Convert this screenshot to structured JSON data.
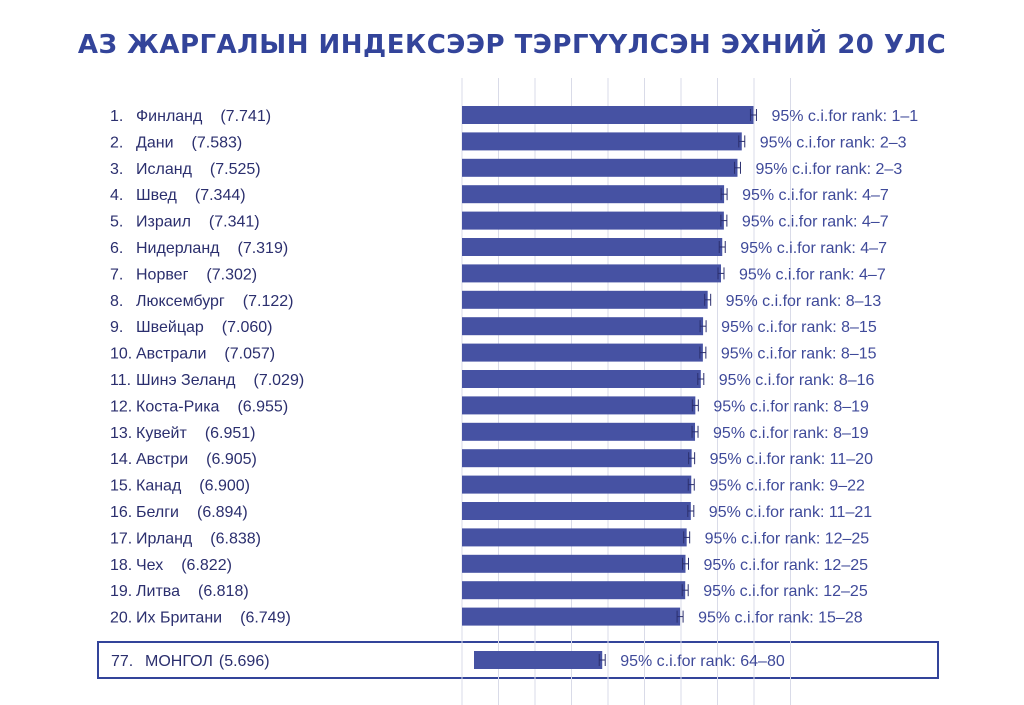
{
  "chart_data": {
    "type": "bar",
    "orientation": "horizontal",
    "title": "АЗ ЖАРГАЛЫН ИНДЕКСЭЭР ТЭРГҮҮЛСЭН ЭХНИЙ 20 УЛС",
    "xlim": [
      3.8,
      8.1
    ],
    "grid": true,
    "bar_color": "#4652a3",
    "entries": [
      {
        "rank": "1.",
        "country": "Финланд",
        "score_label": "(7.741)",
        "value": 7.741,
        "ci": "95% c.i.for rank: 1–1"
      },
      {
        "rank": "2.",
        "country": "Дани",
        "score_label": "(7.583)",
        "value": 7.583,
        "ci": "95% c.i.for rank: 2–3"
      },
      {
        "rank": "3.",
        "country": "Исланд",
        "score_label": "(7.525)",
        "value": 7.525,
        "ci": "95% c.i.for rank: 2–3"
      },
      {
        "rank": "4.",
        "country": "Швед",
        "score_label": "(7.344)",
        "value": 7.344,
        "ci": "95% c.i.for rank: 4–7"
      },
      {
        "rank": "5.",
        "country": "Израил",
        "score_label": "(7.341)",
        "value": 7.341,
        "ci": "95% c.i.for rank: 4–7"
      },
      {
        "rank": "6.",
        "country": "Нидерланд",
        "score_label": "(7.319)",
        "value": 7.319,
        "ci": "95% c.i.for rank: 4–7"
      },
      {
        "rank": "7.",
        "country": "Норвег",
        "score_label": "(7.302)",
        "value": 7.302,
        "ci": "95% c.i.for rank: 4–7"
      },
      {
        "rank": "8.",
        "country": "Люксембург",
        "score_label": "(7.122)",
        "value": 7.122,
        "ci": "95% c.i.for rank: 8–13"
      },
      {
        "rank": "9.",
        "country": "Швейцар",
        "score_label": "(7.060)",
        "value": 7.06,
        "ci": "95% c.i.for rank: 8–15"
      },
      {
        "rank": "10.",
        "country": "Австрали",
        "score_label": "(7.057)",
        "value": 7.057,
        "ci": "95% c.i.for rank: 8–15"
      },
      {
        "rank": "11.",
        "country": "Шинэ Зеланд",
        "score_label": "(7.029)",
        "value": 7.029,
        "ci": "95% c.i.for rank: 8–16"
      },
      {
        "rank": "12.",
        "country": "Коста-Рика",
        "score_label": "(6.955)",
        "value": 6.955,
        "ci": "95% c.i.for rank: 8–19"
      },
      {
        "rank": "13.",
        "country": "Кувейт",
        "score_label": "(6.951)",
        "value": 6.951,
        "ci": "95% c.i.for rank: 8–19"
      },
      {
        "rank": "14.",
        "country": "Австри",
        "score_label": "(6.905)",
        "value": 6.905,
        "ci": "95% c.i.for rank: 11–20"
      },
      {
        "rank": "15.",
        "country": "Канад",
        "score_label": "(6.900)",
        "value": 6.9,
        "ci": "95% c.i.for rank: 9–22"
      },
      {
        "rank": "16.",
        "country": "Белги",
        "score_label": "(6.894)",
        "value": 6.894,
        "ci": "95% c.i.for rank: 11–21"
      },
      {
        "rank": "17.",
        "country": "Ирланд",
        "score_label": "(6.838)",
        "value": 6.838,
        "ci": "95% c.i.for rank: 12–25"
      },
      {
        "rank": "18.",
        "country": "Чех",
        "score_label": "(6.822)",
        "value": 6.822,
        "ci": "95% c.i.for rank: 12–25"
      },
      {
        "rank": "19.",
        "country": "Литва",
        "score_label": "(6.818)",
        "value": 6.818,
        "ci": "95% c.i.for rank: 12–25"
      },
      {
        "rank": "20.",
        "country": "Их Британи",
        "score_label": "(6.749)",
        "value": 6.749,
        "ci": "95% c.i.for rank: 15–28"
      }
    ],
    "highlight": {
      "rank": "77.",
      "country": "МОНГОЛ",
      "score_label": "(5.696)",
      "value": 5.696,
      "ci": "95% c.i.for rank: 64–80"
    }
  }
}
